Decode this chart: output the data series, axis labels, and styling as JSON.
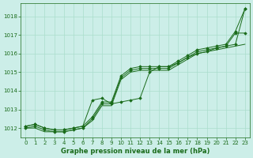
{
  "x": [
    0,
    1,
    2,
    3,
    4,
    5,
    6,
    7,
    8,
    9,
    10,
    11,
    12,
    13,
    14,
    15,
    16,
    17,
    18,
    19,
    20,
    21,
    22,
    23
  ],
  "line1": [
    1012.1,
    1012.2,
    1012.0,
    1011.9,
    1011.9,
    1012.0,
    1012.1,
    1013.5,
    1013.6,
    1013.3,
    1013.4,
    1013.5,
    1013.6,
    1015.0,
    1015.3,
    1015.3,
    1015.5,
    1015.8,
    1016.0,
    1016.1,
    1016.3,
    1016.4,
    1016.5,
    1018.4
  ],
  "line2": [
    1012.1,
    1012.2,
    1012.0,
    1011.9,
    1011.9,
    1012.0,
    1012.1,
    1012.6,
    1013.4,
    1013.4,
    1014.8,
    1015.2,
    1015.3,
    1015.3,
    1015.3,
    1015.3,
    1015.6,
    1015.9,
    1016.2,
    1016.3,
    1016.4,
    1016.5,
    1017.2,
    1018.4
  ],
  "line3": [
    1012.0,
    1012.1,
    1011.9,
    1011.8,
    1011.8,
    1011.9,
    1012.0,
    1012.5,
    1013.3,
    1013.3,
    1014.7,
    1015.1,
    1015.2,
    1015.2,
    1015.2,
    1015.2,
    1015.5,
    1015.8,
    1016.1,
    1016.2,
    1016.3,
    1016.4,
    1017.1,
    1017.1
  ],
  "line4": [
    1012.0,
    1012.0,
    1011.8,
    1011.8,
    1011.8,
    1011.9,
    1012.0,
    1012.4,
    1013.2,
    1013.2,
    1014.6,
    1015.0,
    1015.1,
    1015.1,
    1015.1,
    1015.1,
    1015.4,
    1015.7,
    1016.0,
    1016.1,
    1016.2,
    1016.3,
    1016.4,
    1016.5
  ],
  "bg_color": "#cceee8",
  "grid_color": "#aaddcc",
  "line_color": "#1a6b1a",
  "marker_color": "#1a6b1a",
  "xlabel": "Graphe pression niveau de la mer (hPa)",
  "xlabel_color": "#1a6b1a",
  "tick_color": "#1a6b1a",
  "ylim": [
    1011.5,
    1018.7
  ],
  "xlim": [
    -0.5,
    23.5
  ],
  "yticks": [
    1012,
    1013,
    1014,
    1015,
    1016,
    1017,
    1018
  ],
  "xticks": [
    0,
    1,
    2,
    3,
    4,
    5,
    6,
    7,
    8,
    9,
    10,
    11,
    12,
    13,
    14,
    15,
    16,
    17,
    18,
    19,
    20,
    21,
    22,
    23
  ],
  "figsize": [
    3.2,
    2.0
  ],
  "dpi": 100
}
